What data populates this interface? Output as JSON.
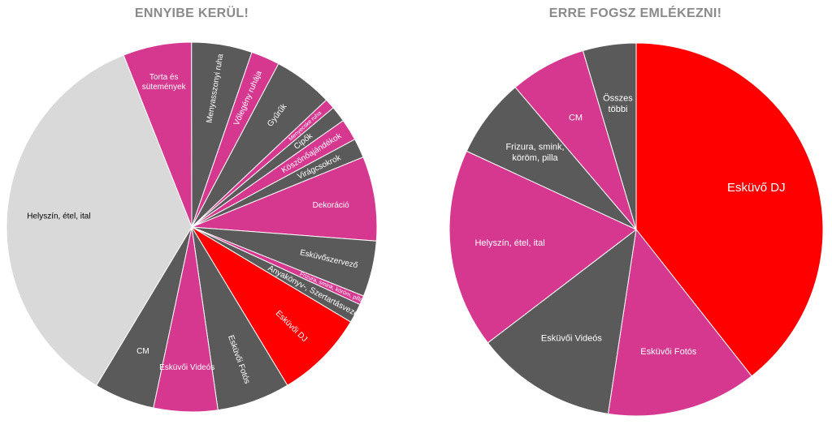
{
  "chart_data": [
    {
      "type": "pie",
      "title": "ENNYIBE KERÜL!",
      "start_angle_deg": -21.6,
      "direction": "clockwise",
      "slices": [
        {
          "label": "Torta és\nsütemények",
          "value": 6.0,
          "color": "#d6378f"
        },
        {
          "label": "Menyasszonyi ruha",
          "value": 5.3,
          "color": "#5a5a5a"
        },
        {
          "label": "Vőlegény ruhája",
          "value": 2.5,
          "color": "#d6378f"
        },
        {
          "label": "Gyűrűk",
          "value": 5.2,
          "color": "#5a5a5a"
        },
        {
          "label": "Menyecske ruha",
          "value": 0.9,
          "color": "#d6378f"
        },
        {
          "label": "Cipők",
          "value": 1.4,
          "color": "#5a5a5a"
        },
        {
          "label": "Köszönőajándékok",
          "value": 1.9,
          "color": "#d6378f"
        },
        {
          "label": "Virágcsokrok",
          "value": 1.7,
          "color": "#5a5a5a"
        },
        {
          "label": "Dekoráció",
          "value": 7.4,
          "color": "#d6378f"
        },
        {
          "label": "Esküvőszervező",
          "value": 4.9,
          "color": "#5a5a5a"
        },
        {
          "label": "Frizura, smink, köröm, pilla",
          "value": 0.8,
          "color": "#d6378f"
        },
        {
          "label": "Anyakönyv-, Szertartásvezető",
          "value": 1.7,
          "color": "#5a5a5a"
        },
        {
          "label": "Esküvői DJ",
          "value": 7.8,
          "color": "#ff0000"
        },
        {
          "label": "Esküvői Fotós",
          "value": 6.4,
          "color": "#5a5a5a"
        },
        {
          "label": "Esküvői Videós",
          "value": 5.6,
          "color": "#d6378f"
        },
        {
          "label": "CM",
          "value": 5.3,
          "color": "#5a5a5a"
        },
        {
          "label": "Helyszín, étel, ital",
          "value": 35.5,
          "color": "#d9d9d9"
        }
      ]
    },
    {
      "type": "pie",
      "title": "ERRE FOGSZ EMLÉKEZNI!",
      "start_angle_deg": 0,
      "direction": "clockwise",
      "slices": [
        {
          "label": "Esküvő DJ",
          "value": 39.4,
          "color": "#ff0000"
        },
        {
          "label": "Esküvői Fotós",
          "value": 13.0,
          "color": "#d6378f"
        },
        {
          "label": "Esküvői Videós",
          "value": 12.2,
          "color": "#5a5a5a"
        },
        {
          "label": "Helyszín, étel, ital",
          "value": 17.3,
          "color": "#d6378f"
        },
        {
          "label": "Frizura, smink,\nköröm, pilla",
          "value": 6.9,
          "color": "#5a5a5a"
        },
        {
          "label": "CM",
          "value": 6.6,
          "color": "#d6378f"
        },
        {
          "label": "Összes\ntöbbi",
          "value": 4.6,
          "color": "#5a5a5a"
        }
      ]
    }
  ]
}
